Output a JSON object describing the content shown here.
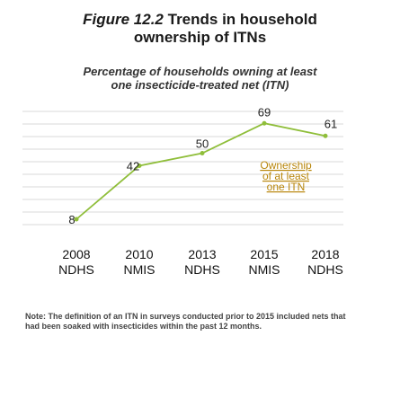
{
  "figure": {
    "number": "Figure 12.2",
    "title_line1": "Trends in household",
    "title_line2": "ownership of ITNs",
    "subtitle_line1": "Percentage of households owning at least",
    "subtitle_line2": "one insecticide-treated net (ITN)"
  },
  "chart_data": {
    "type": "line",
    "categories": [
      "2008",
      "2010",
      "2013",
      "2015",
      "2018"
    ],
    "surveys": [
      "NDHS",
      "NMIS",
      "NDHS",
      "NMIS",
      "NDHS"
    ],
    "series": [
      {
        "name": "Ownership of at least one ITN",
        "name_lines": [
          "Ownership",
          "of at least",
          "one ITN"
        ],
        "values": [
          8,
          42,
          50,
          69,
          61
        ]
      }
    ],
    "ylim": [
      0,
      80
    ],
    "grid": true,
    "line_color": "#8fbe3a",
    "marker_color": "#8fbe3a",
    "grid_color": "#d9d9d9"
  },
  "note": "Note: The definition of an ITN in surveys conducted prior to 2015 included nets that had been soaked with insecticides within the past 12 months."
}
